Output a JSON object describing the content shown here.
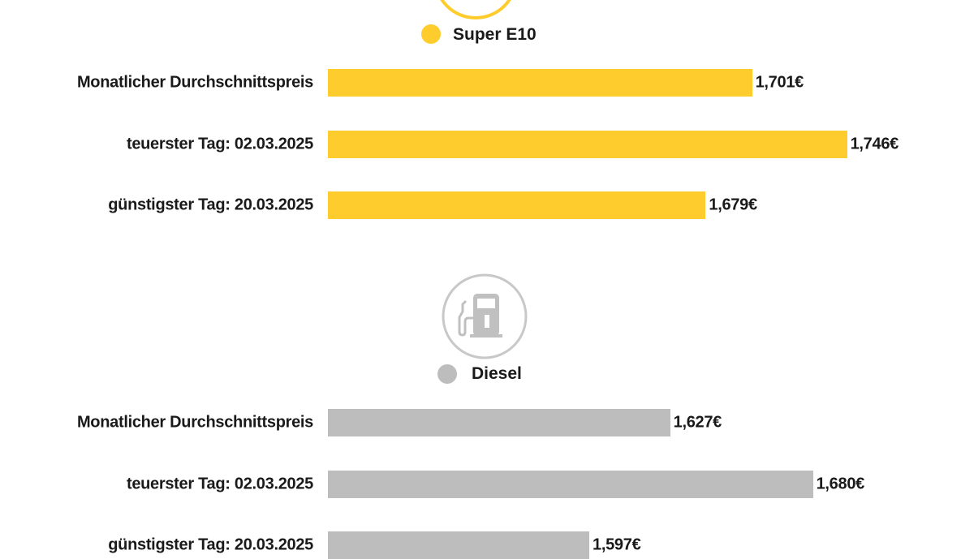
{
  "chart_data": [
    {
      "type": "bar",
      "orientation": "horizontal",
      "legend": "Super E10",
      "color": "#FFCC2E",
      "icon": "fuel-pump-icon",
      "categories": [
        "Monatlicher Durchschnittspreis",
        "teuerster Tag: 02.03.2025",
        "günstigster Tag: 20.03.2025"
      ],
      "values": [
        1.701,
        1.746,
        1.679
      ],
      "value_labels": [
        "1,701€",
        "1,746€",
        "1,679€"
      ]
    },
    {
      "type": "bar",
      "orientation": "horizontal",
      "legend": "Diesel",
      "color": "#BDBDBD",
      "icon": "fuel-pump-icon",
      "categories": [
        "Monatlicher Durchschnittspreis",
        "teuerster Tag: 02.03.2025",
        "günstigster Tag: 20.03.2025"
      ],
      "values": [
        1.627,
        1.68,
        1.597
      ],
      "value_labels": [
        "1,627€",
        "1,680€",
        "1,597€"
      ]
    }
  ]
}
